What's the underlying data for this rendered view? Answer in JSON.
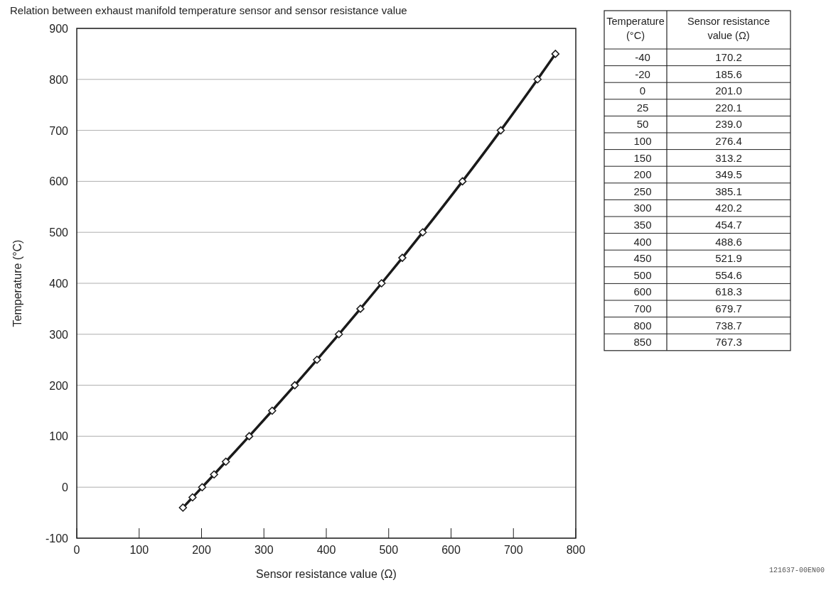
{
  "chart_data": [
    {
      "type": "line",
      "title": "Relation between exhaust manifold temperature sensor and sensor resistance value",
      "xlabel": "Sensor resistance value (Ω)",
      "ylabel": "Temperature (°C)",
      "x": [
        170.2,
        185.6,
        201.0,
        220.1,
        239.0,
        276.4,
        313.2,
        349.5,
        385.1,
        420.2,
        454.7,
        488.6,
        521.9,
        554.6,
        618.3,
        679.7,
        738.7,
        767.3
      ],
      "series": [
        {
          "color": "#1a1a1a",
          "values": [
            -40,
            -20,
            0,
            25,
            50,
            100,
            150,
            200,
            250,
            300,
            350,
            400,
            450,
            500,
            600,
            700,
            800,
            850
          ]
        }
      ],
      "xlim": [
        0,
        800
      ],
      "xticks": [
        0,
        100,
        200,
        300,
        400,
        500,
        600,
        700,
        800
      ],
      "ylim": [
        -100,
        900
      ],
      "yticks": [
        -100,
        0,
        100,
        200,
        300,
        400,
        500,
        600,
        700,
        800,
        900
      ],
      "grid": "y",
      "marker": "diamond",
      "line_style": "solid",
      "annotations": [
        "121637-00EN00"
      ]
    },
    {
      "type": "other",
      "annotations": [
        "Temperature (°C)",
        "Sensor resistance value (Ω)",
        "-40",
        "170.2",
        "-20",
        "185.6",
        "0",
        "201.0",
        "25",
        "220.1",
        "50",
        "239.0",
        "100",
        "276.4",
        "150",
        "313.2",
        "200",
        "349.5",
        "250",
        "385.1",
        "300",
        "420.2",
        "350",
        "454.7",
        "400",
        "488.6",
        "450",
        "521.9",
        "500",
        "554.6",
        "600",
        "618.3",
        "700",
        "679.7",
        "800",
        "738.7",
        "850",
        "767.3"
      ]
    }
  ]
}
